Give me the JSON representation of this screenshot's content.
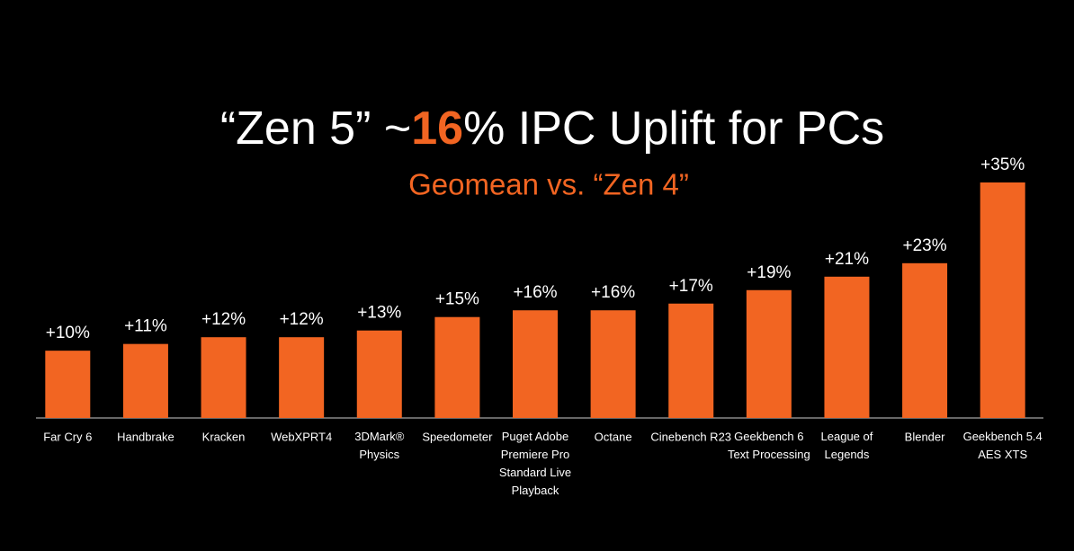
{
  "chart_data": {
    "type": "bar",
    "title": [
      {
        "text": "“Zen 5” ~",
        "color": "#ffffff"
      },
      {
        "text": "16",
        "color": "#f26522"
      },
      {
        "text": "% IPC Uplift for PCs",
        "color": "#ffffff"
      }
    ],
    "subtitle": "Geomean  vs. “Zen 4”",
    "categories": [
      "Far Cry 6",
      "Handbrake",
      "Kracken",
      "WebXPRT4",
      "3DMark®\nPhysics",
      "Speedometer",
      "Puget Adobe\nPremiere Pro\nStandard Live\nPlayback",
      "Octane",
      "Cinebench R23",
      "Geekbench 6\nText Processing",
      "League of\nLegends",
      "Blender",
      "Geekbench 5.4\nAES XTS"
    ],
    "values": [
      10,
      11,
      12,
      12,
      13,
      15,
      16,
      16,
      17,
      19,
      21,
      23,
      35
    ],
    "value_labels": [
      "+10%",
      "+11%",
      "+12%",
      "+12%",
      "+13%",
      "+15%",
      "+16%",
      "+16%",
      "+17%",
      "+19%",
      "+21%",
      "+23%",
      "+35%"
    ],
    "color": "#f26522",
    "ylim": [
      0,
      35
    ]
  }
}
